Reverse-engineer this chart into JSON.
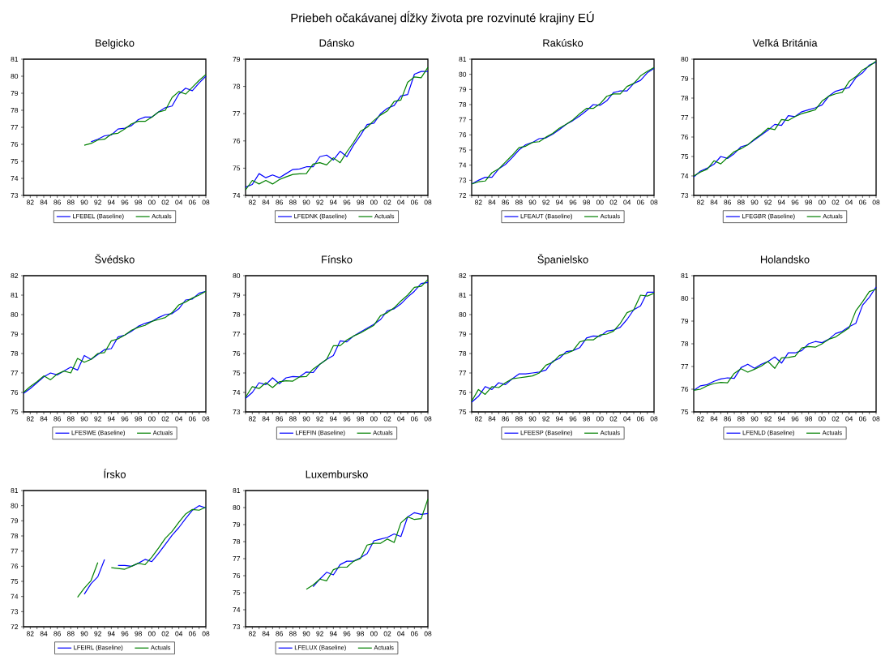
{
  "chart_data": [
    {
      "type": "line",
      "title": "Belgicko",
      "annotations": [
        "Priebeh očakávanej dĺžky života pre rozvinuté krajiny EÚ"
      ],
      "legend": "bottom",
      "xlim": [
        1981,
        2008
      ],
      "ylim": [
        73,
        81
      ],
      "yticks": [
        73,
        74,
        75,
        76,
        77,
        78,
        79,
        80,
        81
      ],
      "xticks": [
        {
          "value": 1981,
          "label": null
        },
        {
          "value": 1982,
          "label": "82"
        },
        {
          "value": 1983,
          "label": null
        },
        {
          "value": 1984,
          "label": "84"
        },
        {
          "value": 1985,
          "label": null
        },
        {
          "value": 1986,
          "label": "86"
        },
        {
          "value": 1987,
          "label": null
        },
        {
          "value": 1988,
          "label": "88"
        },
        {
          "value": 1989,
          "label": null
        },
        {
          "value": 1990,
          "label": "90"
        },
        {
          "value": 1991,
          "label": null
        },
        {
          "value": 1992,
          "label": "92"
        },
        {
          "value": 1993,
          "label": null
        },
        {
          "value": 1994,
          "label": "94"
        },
        {
          "value": 1995,
          "label": null
        },
        {
          "value": 1996,
          "label": "96"
        },
        {
          "value": 1997,
          "label": null
        },
        {
          "value": 1998,
          "label": "98"
        },
        {
          "value": 1999,
          "label": null
        },
        {
          "value": 2000,
          "label": "00"
        },
        {
          "value": 2001,
          "label": null
        },
        {
          "value": 2002,
          "label": "02"
        },
        {
          "value": 2003,
          "label": null
        },
        {
          "value": 2004,
          "label": "04"
        },
        {
          "value": 2005,
          "label": null
        },
        {
          "value": 2006,
          "label": "06"
        },
        {
          "value": 2007,
          "label": null
        },
        {
          "value": 2008,
          "label": "08"
        }
      ],
      "x": [
        1990,
        1991,
        1992,
        1993,
        1994,
        1995,
        1996,
        1997,
        1998,
        1999,
        2000,
        2001,
        2002,
        2003,
        2004,
        2005,
        2006,
        2007,
        2008
      ],
      "series": [
        {
          "name": "LFEBEL (Baseline)",
          "color": "#0000ff",
          "values": [
            null,
            76.15,
            76.3,
            76.5,
            76.55,
            76.9,
            76.95,
            77.1,
            77.45,
            77.6,
            77.6,
            77.9,
            78.15,
            78.25,
            78.95,
            79.3,
            79.15,
            79.6,
            80.0
          ]
        },
        {
          "name": "Actuals",
          "color": "#008000",
          "values": [
            75.95,
            76.05,
            76.25,
            76.3,
            76.6,
            76.65,
            76.9,
            77.2,
            77.35,
            77.35,
            77.6,
            77.9,
            78.0,
            78.75,
            79.1,
            78.95,
            79.35,
            79.75,
            80.1
          ]
        }
      ]
    },
    {
      "type": "line",
      "title": "Dánsko",
      "legend": "bottom",
      "xlim": [
        1981,
        2008
      ],
      "ylim": [
        74,
        79
      ],
      "yticks": [
        74,
        75,
        76,
        77,
        78,
        79
      ],
      "xticks": [
        {
          "value": 1981,
          "label": null
        },
        {
          "value": 1982,
          "label": "82"
        },
        {
          "value": 1983,
          "label": null
        },
        {
          "value": 1984,
          "label": "84"
        },
        {
          "value": 1985,
          "label": null
        },
        {
          "value": 1986,
          "label": "86"
        },
        {
          "value": 1987,
          "label": null
        },
        {
          "value": 1988,
          "label": "88"
        },
        {
          "value": 1989,
          "label": null
        },
        {
          "value": 1990,
          "label": "90"
        },
        {
          "value": 1991,
          "label": null
        },
        {
          "value": 1992,
          "label": "92"
        },
        {
          "value": 1993,
          "label": null
        },
        {
          "value": 1994,
          "label": "94"
        },
        {
          "value": 1995,
          "label": null
        },
        {
          "value": 1996,
          "label": "96"
        },
        {
          "value": 1997,
          "label": null
        },
        {
          "value": 1998,
          "label": "98"
        },
        {
          "value": 1999,
          "label": null
        },
        {
          "value": 2000,
          "label": "00"
        },
        {
          "value": 2001,
          "label": null
        },
        {
          "value": 2002,
          "label": "02"
        },
        {
          "value": 2003,
          "label": null
        },
        {
          "value": 2004,
          "label": "04"
        },
        {
          "value": 2005,
          "label": null
        },
        {
          "value": 2006,
          "label": "06"
        },
        {
          "value": 2007,
          "label": null
        },
        {
          "value": 2008,
          "label": "08"
        }
      ],
      "x": [
        1981,
        1982,
        1983,
        1984,
        1985,
        1986,
        1987,
        1988,
        1989,
        1990,
        1991,
        1992,
        1993,
        1994,
        1995,
        1996,
        1997,
        1998,
        1999,
        2000,
        2001,
        2002,
        2003,
        2004,
        2005,
        2006,
        2007,
        2008
      ],
      "series": [
        {
          "name": "LFEDNK (Baseline)",
          "color": "#0000ff",
          "values": [
            74.3,
            74.4,
            74.8,
            74.65,
            74.75,
            74.65,
            74.8,
            74.95,
            74.97,
            75.05,
            75.05,
            75.42,
            75.48,
            75.3,
            75.62,
            75.42,
            75.85,
            76.2,
            76.6,
            76.65,
            77.0,
            77.2,
            77.3,
            77.65,
            77.7,
            78.45,
            78.55,
            78.55
          ]
        },
        {
          "name": "Actuals",
          "color": "#008000",
          "values": [
            74.2,
            74.55,
            74.42,
            74.55,
            74.42,
            74.58,
            74.68,
            74.77,
            74.79,
            74.8,
            75.15,
            75.2,
            75.12,
            75.38,
            75.2,
            75.6,
            75.95,
            76.35,
            76.5,
            76.75,
            76.95,
            77.1,
            77.45,
            77.5,
            78.15,
            78.35,
            78.32,
            78.7
          ]
        }
      ]
    },
    {
      "type": "line",
      "title": "Rakúsko",
      "legend": "bottom",
      "xlim": [
        1981,
        2008
      ],
      "ylim": [
        72,
        81
      ],
      "yticks": [
        72,
        73,
        74,
        75,
        76,
        77,
        78,
        79,
        80,
        81
      ],
      "xticks": [
        {
          "value": 1981,
          "label": null
        },
        {
          "value": 1982,
          "label": "82"
        },
        {
          "value": 1983,
          "label": null
        },
        {
          "value": 1984,
          "label": "84"
        },
        {
          "value": 1985,
          "label": null
        },
        {
          "value": 1986,
          "label": "86"
        },
        {
          "value": 1987,
          "label": null
        },
        {
          "value": 1988,
          "label": "88"
        },
        {
          "value": 1989,
          "label": null
        },
        {
          "value": 1990,
          "label": "90"
        },
        {
          "value": 1991,
          "label": null
        },
        {
          "value": 1992,
          "label": "92"
        },
        {
          "value": 1993,
          "label": null
        },
        {
          "value": 1994,
          "label": "94"
        },
        {
          "value": 1995,
          "label": null
        },
        {
          "value": 1996,
          "label": "96"
        },
        {
          "value": 1997,
          "label": null
        },
        {
          "value": 1998,
          "label": "98"
        },
        {
          "value": 1999,
          "label": null
        },
        {
          "value": 2000,
          "label": "00"
        },
        {
          "value": 2001,
          "label": null
        },
        {
          "value": 2002,
          "label": "02"
        },
        {
          "value": 2003,
          "label": null
        },
        {
          "value": 2004,
          "label": "04"
        },
        {
          "value": 2005,
          "label": null
        },
        {
          "value": 2006,
          "label": "06"
        },
        {
          "value": 2007,
          "label": null
        },
        {
          "value": 2008,
          "label": "08"
        }
      ],
      "x": [
        1981,
        1982,
        1983,
        1984,
        1985,
        1986,
        1987,
        1988,
        1989,
        1990,
        1991,
        1992,
        1993,
        1994,
        1995,
        1996,
        1997,
        1998,
        1999,
        2000,
        2001,
        2002,
        2003,
        2004,
        2005,
        2006,
        2007,
        2008
      ],
      "series": [
        {
          "name": "LFEAUT (Baseline)",
          "color": "#0000ff",
          "values": [
            72.75,
            73.0,
            73.2,
            73.2,
            73.75,
            74.05,
            74.5,
            75.0,
            75.35,
            75.5,
            75.75,
            75.8,
            76.05,
            76.35,
            76.7,
            76.95,
            77.25,
            77.6,
            78.0,
            77.95,
            78.25,
            78.8,
            78.9,
            78.9,
            79.4,
            79.6,
            80.1,
            80.4
          ]
        },
        {
          "name": "Actuals",
          "color": "#008000",
          "values": [
            72.75,
            72.9,
            72.95,
            73.5,
            73.75,
            74.2,
            74.65,
            75.15,
            75.25,
            75.5,
            75.55,
            75.85,
            76.1,
            76.45,
            76.7,
            77.0,
            77.4,
            77.75,
            77.75,
            78.05,
            78.55,
            78.7,
            78.7,
            79.2,
            79.4,
            79.9,
            80.2,
            80.45
          ]
        }
      ]
    },
    {
      "type": "line",
      "title": "Veľká Británia",
      "legend": "bottom",
      "xlim": [
        1981,
        2008
      ],
      "ylim": [
        73,
        80
      ],
      "yticks": [
        73,
        74,
        75,
        76,
        77,
        78,
        79,
        80
      ],
      "xticks": [
        {
          "value": 1981,
          "label": null
        },
        {
          "value": 1982,
          "label": "82"
        },
        {
          "value": 1983,
          "label": null
        },
        {
          "value": 1984,
          "label": "84"
        },
        {
          "value": 1985,
          "label": null
        },
        {
          "value": 1986,
          "label": "86"
        },
        {
          "value": 1987,
          "label": null
        },
        {
          "value": 1988,
          "label": "88"
        },
        {
          "value": 1989,
          "label": null
        },
        {
          "value": 1990,
          "label": "90"
        },
        {
          "value": 1991,
          "label": null
        },
        {
          "value": 1992,
          "label": "92"
        },
        {
          "value": 1993,
          "label": null
        },
        {
          "value": 1994,
          "label": "94"
        },
        {
          "value": 1995,
          "label": null
        },
        {
          "value": 1996,
          "label": "96"
        },
        {
          "value": 1997,
          "label": null
        },
        {
          "value": 1998,
          "label": "98"
        },
        {
          "value": 1999,
          "label": null
        },
        {
          "value": 2000,
          "label": "00"
        },
        {
          "value": 2001,
          "label": null
        },
        {
          "value": 2002,
          "label": "02"
        },
        {
          "value": 2003,
          "label": null
        },
        {
          "value": 2004,
          "label": "04"
        },
        {
          "value": 2005,
          "label": null
        },
        {
          "value": 2006,
          "label": "06"
        },
        {
          "value": 2007,
          "label": null
        },
        {
          "value": 2008,
          "label": "08"
        }
      ],
      "x": [
        1981,
        1982,
        1983,
        1984,
        1985,
        1986,
        1987,
        1988,
        1989,
        1990,
        1991,
        1992,
        1993,
        1994,
        1995,
        1996,
        1997,
        1998,
        1999,
        2000,
        2001,
        2002,
        2003,
        2004,
        2005,
        2006,
        2007,
        2008
      ],
      "series": [
        {
          "name": "LFEGBR (Baseline)",
          "color": "#0000ff",
          "values": [
            73.95,
            74.25,
            74.4,
            74.6,
            75.0,
            74.9,
            75.15,
            75.5,
            75.6,
            75.85,
            76.1,
            76.35,
            76.65,
            76.6,
            77.1,
            77.05,
            77.3,
            77.4,
            77.5,
            77.65,
            78.1,
            78.35,
            78.45,
            78.55,
            79.05,
            79.3,
            79.7,
            79.85
          ]
        },
        {
          "name": "Actuals",
          "color": "#008000",
          "values": [
            74.0,
            74.2,
            74.35,
            74.78,
            74.62,
            74.95,
            75.25,
            75.4,
            75.6,
            75.9,
            76.15,
            76.45,
            76.38,
            76.9,
            76.85,
            77.05,
            77.2,
            77.3,
            77.4,
            77.85,
            78.1,
            78.22,
            78.3,
            78.85,
            79.1,
            79.45,
            79.65,
            79.9
          ]
        }
      ]
    },
    {
      "type": "line",
      "title": "Švédsko",
      "legend": "bottom",
      "xlim": [
        1981,
        2008
      ],
      "ylim": [
        75,
        82
      ],
      "yticks": [
        75,
        76,
        77,
        78,
        79,
        80,
        81,
        82
      ],
      "xticks": [
        {
          "value": 1981,
          "label": null
        },
        {
          "value": 1982,
          "label": "82"
        },
        {
          "value": 1983,
          "label": null
        },
        {
          "value": 1984,
          "label": "84"
        },
        {
          "value": 1985,
          "label": null
        },
        {
          "value": 1986,
          "label": "86"
        },
        {
          "value": 1987,
          "label": null
        },
        {
          "value": 1988,
          "label": "88"
        },
        {
          "value": 1989,
          "label": null
        },
        {
          "value": 1990,
          "label": "90"
        },
        {
          "value": 1991,
          "label": null
        },
        {
          "value": 1992,
          "label": "92"
        },
        {
          "value": 1993,
          "label": null
        },
        {
          "value": 1994,
          "label": "94"
        },
        {
          "value": 1995,
          "label": null
        },
        {
          "value": 1996,
          "label": "96"
        },
        {
          "value": 1997,
          "label": null
        },
        {
          "value": 1998,
          "label": "98"
        },
        {
          "value": 1999,
          "label": null
        },
        {
          "value": 2000,
          "label": "00"
        },
        {
          "value": 2001,
          "label": null
        },
        {
          "value": 2002,
          "label": "02"
        },
        {
          "value": 2003,
          "label": null
        },
        {
          "value": 2004,
          "label": "04"
        },
        {
          "value": 2005,
          "label": null
        },
        {
          "value": 2006,
          "label": "06"
        },
        {
          "value": 2007,
          "label": null
        },
        {
          "value": 2008,
          "label": "08"
        }
      ],
      "x": [
        1981,
        1982,
        1983,
        1984,
        1985,
        1986,
        1987,
        1988,
        1989,
        1990,
        1991,
        1992,
        1993,
        1994,
        1995,
        1996,
        1997,
        1998,
        1999,
        2000,
        2001,
        2002,
        2003,
        2004,
        2005,
        2006,
        2007,
        2008
      ],
      "series": [
        {
          "name": "LFESWE (Baseline)",
          "color": "#0000ff",
          "values": [
            75.95,
            76.2,
            76.5,
            76.8,
            77.0,
            76.9,
            77.1,
            77.3,
            77.15,
            77.9,
            77.7,
            77.95,
            78.2,
            78.25,
            78.85,
            78.95,
            79.15,
            79.4,
            79.55,
            79.65,
            79.85,
            80.0,
            80.05,
            80.3,
            80.75,
            80.8,
            81.1,
            81.2
          ]
        },
        {
          "name": "Actuals",
          "color": "#008000",
          "values": [
            76.0,
            76.3,
            76.55,
            76.85,
            76.65,
            76.95,
            77.1,
            77.0,
            77.75,
            77.55,
            77.7,
            78.0,
            78.05,
            78.65,
            78.75,
            78.95,
            79.2,
            79.35,
            79.45,
            79.65,
            79.75,
            79.85,
            80.1,
            80.5,
            80.65,
            80.85,
            81.0,
            81.2
          ]
        }
      ]
    },
    {
      "type": "line",
      "title": "Fínsko",
      "legend": "bottom",
      "xlim": [
        1981,
        2008
      ],
      "ylim": [
        73,
        80
      ],
      "yticks": [
        73,
        74,
        75,
        76,
        77,
        78,
        79,
        80
      ],
      "xticks": [
        {
          "value": 1981,
          "label": null
        },
        {
          "value": 1982,
          "label": "82"
        },
        {
          "value": 1983,
          "label": null
        },
        {
          "value": 1984,
          "label": "84"
        },
        {
          "value": 1985,
          "label": null
        },
        {
          "value": 1986,
          "label": "86"
        },
        {
          "value": 1987,
          "label": null
        },
        {
          "value": 1988,
          "label": "88"
        },
        {
          "value": 1989,
          "label": null
        },
        {
          "value": 1990,
          "label": "90"
        },
        {
          "value": 1991,
          "label": null
        },
        {
          "value": 1992,
          "label": "92"
        },
        {
          "value": 1993,
          "label": null
        },
        {
          "value": 1994,
          "label": "94"
        },
        {
          "value": 1995,
          "label": null
        },
        {
          "value": 1996,
          "label": "96"
        },
        {
          "value": 1997,
          "label": null
        },
        {
          "value": 1998,
          "label": "98"
        },
        {
          "value": 1999,
          "label": null
        },
        {
          "value": 2000,
          "label": "00"
        },
        {
          "value": 2001,
          "label": null
        },
        {
          "value": 2002,
          "label": "02"
        },
        {
          "value": 2003,
          "label": null
        },
        {
          "value": 2004,
          "label": "04"
        },
        {
          "value": 2005,
          "label": null
        },
        {
          "value": 2006,
          "label": "06"
        },
        {
          "value": 2007,
          "label": null
        },
        {
          "value": 2008,
          "label": "08"
        }
      ],
      "x": [
        1981,
        1982,
        1983,
        1984,
        1985,
        1986,
        1987,
        1988,
        1989,
        1990,
        1991,
        1992,
        1993,
        1994,
        1995,
        1996,
        1997,
        1998,
        1999,
        2000,
        2001,
        2002,
        2003,
        2004,
        2005,
        2006,
        2007,
        2008
      ],
      "series": [
        {
          "name": "LFEFIN (Baseline)",
          "color": "#0000ff",
          "values": [
            73.7,
            74.0,
            74.5,
            74.4,
            74.75,
            74.45,
            74.75,
            74.82,
            74.8,
            75.05,
            75.02,
            75.45,
            75.7,
            75.9,
            76.65,
            76.6,
            76.9,
            77.1,
            77.3,
            77.5,
            77.75,
            78.2,
            78.3,
            78.55,
            78.9,
            79.2,
            79.6,
            79.65
          ]
        },
        {
          "name": "Actuals",
          "color": "#008000",
          "values": [
            73.75,
            74.3,
            74.2,
            74.5,
            74.25,
            74.55,
            74.6,
            74.58,
            74.8,
            74.82,
            75.2,
            75.45,
            75.7,
            76.4,
            76.4,
            76.7,
            76.9,
            77.05,
            77.25,
            77.45,
            77.95,
            78.1,
            78.35,
            78.7,
            79.0,
            79.4,
            79.45,
            79.8
          ]
        }
      ]
    },
    {
      "type": "line",
      "title": "Španielsko",
      "legend": "bottom",
      "xlim": [
        1981,
        2008
      ],
      "ylim": [
        75,
        82
      ],
      "yticks": [
        75,
        76,
        77,
        78,
        79,
        80,
        81,
        82
      ],
      "xticks": [
        {
          "value": 1981,
          "label": null
        },
        {
          "value": 1982,
          "label": "82"
        },
        {
          "value": 1983,
          "label": null
        },
        {
          "value": 1984,
          "label": "84"
        },
        {
          "value": 1985,
          "label": null
        },
        {
          "value": 1986,
          "label": "86"
        },
        {
          "value": 1987,
          "label": null
        },
        {
          "value": 1988,
          "label": "88"
        },
        {
          "value": 1989,
          "label": null
        },
        {
          "value": 1990,
          "label": "90"
        },
        {
          "value": 1991,
          "label": null
        },
        {
          "value": 1992,
          "label": "92"
        },
        {
          "value": 1993,
          "label": null
        },
        {
          "value": 1994,
          "label": "94"
        },
        {
          "value": 1995,
          "label": null
        },
        {
          "value": 1996,
          "label": "96"
        },
        {
          "value": 1997,
          "label": null
        },
        {
          "value": 1998,
          "label": "98"
        },
        {
          "value": 1999,
          "label": null
        },
        {
          "value": 2000,
          "label": "00"
        },
        {
          "value": 2001,
          "label": null
        },
        {
          "value": 2002,
          "label": "02"
        },
        {
          "value": 2003,
          "label": null
        },
        {
          "value": 2004,
          "label": "04"
        },
        {
          "value": 2005,
          "label": null
        },
        {
          "value": 2006,
          "label": "06"
        },
        {
          "value": 2007,
          "label": null
        },
        {
          "value": 2008,
          "label": "08"
        }
      ],
      "x": [
        1981,
        1982,
        1983,
        1984,
        1985,
        1986,
        1987,
        1988,
        1989,
        1990,
        1991,
        1992,
        1993,
        1994,
        1995,
        1996,
        1997,
        1998,
        1999,
        2000,
        2001,
        2002,
        2003,
        2004,
        2005,
        2006,
        2007,
        2008
      ],
      "series": [
        {
          "name": "LFEESP (Baseline)",
          "color": "#0000ff",
          "values": [
            75.5,
            75.8,
            76.3,
            76.15,
            76.5,
            76.4,
            76.7,
            76.95,
            76.95,
            77.0,
            77.05,
            77.15,
            77.6,
            77.75,
            78.1,
            78.15,
            78.3,
            78.8,
            78.9,
            78.88,
            79.15,
            79.2,
            79.35,
            79.75,
            80.25,
            80.45,
            81.15,
            81.15
          ]
        },
        {
          "name": "Actuals",
          "color": "#008000",
          "values": [
            75.55,
            76.15,
            75.9,
            76.3,
            76.25,
            76.5,
            76.7,
            76.75,
            76.8,
            76.85,
            77.0,
            77.4,
            77.55,
            77.9,
            78.0,
            78.15,
            78.6,
            78.7,
            78.7,
            78.95,
            79.0,
            79.15,
            79.55,
            80.1,
            80.25,
            81.0,
            80.95,
            81.1
          ]
        }
      ]
    },
    {
      "type": "line",
      "title": "Holandsko",
      "legend": "bottom",
      "xlim": [
        1981,
        2008
      ],
      "ylim": [
        75,
        81
      ],
      "yticks": [
        75,
        76,
        77,
        78,
        79,
        80,
        81
      ],
      "xticks": [
        {
          "value": 1981,
          "label": null
        },
        {
          "value": 1982,
          "label": "82"
        },
        {
          "value": 1983,
          "label": null
        },
        {
          "value": 1984,
          "label": "84"
        },
        {
          "value": 1985,
          "label": null
        },
        {
          "value": 1986,
          "label": "86"
        },
        {
          "value": 1987,
          "label": null
        },
        {
          "value": 1988,
          "label": "88"
        },
        {
          "value": 1989,
          "label": null
        },
        {
          "value": 1990,
          "label": "90"
        },
        {
          "value": 1991,
          "label": null
        },
        {
          "value": 1992,
          "label": "92"
        },
        {
          "value": 1993,
          "label": null
        },
        {
          "value": 1994,
          "label": "94"
        },
        {
          "value": 1995,
          "label": null
        },
        {
          "value": 1996,
          "label": "96"
        },
        {
          "value": 1997,
          "label": null
        },
        {
          "value": 1998,
          "label": "98"
        },
        {
          "value": 1999,
          "label": null
        },
        {
          "value": 2000,
          "label": "00"
        },
        {
          "value": 2001,
          "label": null
        },
        {
          "value": 2002,
          "label": "02"
        },
        {
          "value": 2003,
          "label": null
        },
        {
          "value": 2004,
          "label": "04"
        },
        {
          "value": 2005,
          "label": null
        },
        {
          "value": 2006,
          "label": "06"
        },
        {
          "value": 2007,
          "label": null
        },
        {
          "value": 2008,
          "label": "08"
        }
      ],
      "x": [
        1981,
        1982,
        1983,
        1984,
        1985,
        1986,
        1987,
        1988,
        1989,
        1990,
        1991,
        1992,
        1993,
        1994,
        1995,
        1996,
        1997,
        1998,
        1999,
        2000,
        2001,
        2002,
        2003,
        2004,
        2005,
        2006,
        2007,
        2008
      ],
      "series": [
        {
          "name": "LFENLD (Baseline)",
          "color": "#0000ff",
          "values": [
            75.95,
            76.15,
            76.2,
            76.35,
            76.45,
            76.5,
            76.48,
            76.95,
            77.1,
            76.92,
            77.1,
            77.22,
            77.42,
            77.15,
            77.6,
            77.6,
            77.7,
            78.0,
            78.1,
            78.05,
            78.2,
            78.45,
            78.55,
            78.75,
            78.9,
            79.7,
            80.05,
            80.5
          ]
        },
        {
          "name": "Actuals",
          "color": "#008000",
          "values": [
            75.95,
            76.0,
            76.15,
            76.25,
            76.3,
            76.28,
            76.7,
            76.9,
            76.75,
            76.88,
            77.02,
            77.22,
            76.92,
            77.38,
            77.4,
            77.45,
            77.82,
            77.88,
            77.85,
            78.0,
            78.2,
            78.3,
            78.5,
            78.7,
            79.45,
            79.85,
            80.3,
            80.4
          ]
        }
      ]
    },
    {
      "type": "line",
      "title": "Írsko",
      "legend": "bottom",
      "xlim": [
        1981,
        2008
      ],
      "ylim": [
        72,
        81
      ],
      "yticks": [
        72,
        73,
        74,
        75,
        76,
        77,
        78,
        79,
        80,
        81
      ],
      "xticks": [
        {
          "value": 1981,
          "label": null
        },
        {
          "value": 1982,
          "label": "82"
        },
        {
          "value": 1983,
          "label": null
        },
        {
          "value": 1984,
          "label": "84"
        },
        {
          "value": 1985,
          "label": null
        },
        {
          "value": 1986,
          "label": "86"
        },
        {
          "value": 1987,
          "label": null
        },
        {
          "value": 1988,
          "label": "88"
        },
        {
          "value": 1989,
          "label": null
        },
        {
          "value": 1990,
          "label": "90"
        },
        {
          "value": 1991,
          "label": null
        },
        {
          "value": 1992,
          "label": "92"
        },
        {
          "value": 1993,
          "label": null
        },
        {
          "value": 1994,
          "label": "94"
        },
        {
          "value": 1995,
          "label": null
        },
        {
          "value": 1996,
          "label": "96"
        },
        {
          "value": 1997,
          "label": null
        },
        {
          "value": 1998,
          "label": "98"
        },
        {
          "value": 1999,
          "label": null
        },
        {
          "value": 2000,
          "label": "00"
        },
        {
          "value": 2001,
          "label": null
        },
        {
          "value": 2002,
          "label": "02"
        },
        {
          "value": 2003,
          "label": null
        },
        {
          "value": 2004,
          "label": "04"
        },
        {
          "value": 2005,
          "label": null
        },
        {
          "value": 2006,
          "label": "06"
        },
        {
          "value": 2007,
          "label": null
        },
        {
          "value": 2008,
          "label": "08"
        }
      ],
      "x": [
        1989,
        1990,
        1991,
        1992,
        1993,
        1994,
        1995,
        1996,
        1997,
        1998,
        1999,
        2000,
        2001,
        2002,
        2003,
        2004,
        2005,
        2006,
        2007,
        2008
      ],
      "series": [
        {
          "name": "LFEIRL (Baseline)",
          "color": "#0000ff",
          "values": [
            null,
            74.15,
            74.85,
            75.3,
            76.45,
            null,
            76.05,
            76.05,
            76.0,
            76.2,
            76.45,
            76.3,
            76.85,
            77.45,
            78.05,
            78.55,
            79.15,
            79.7,
            80.0,
            79.85
          ]
        },
        {
          "name": "Actuals",
          "color": "#008000",
          "values": [
            73.95,
            74.55,
            75.05,
            76.25,
            null,
            75.9,
            75.85,
            75.8,
            76.0,
            76.2,
            76.1,
            76.6,
            77.2,
            77.85,
            78.3,
            78.9,
            79.45,
            79.75,
            79.7,
            79.9
          ]
        }
      ]
    },
    {
      "type": "line",
      "title": "Luxembursko",
      "legend": "bottom",
      "xlim": [
        1981,
        2008
      ],
      "ylim": [
        73,
        81
      ],
      "yticks": [
        73,
        74,
        75,
        76,
        77,
        78,
        79,
        80,
        81
      ],
      "xticks": [
        {
          "value": 1981,
          "label": null
        },
        {
          "value": 1982,
          "label": "82"
        },
        {
          "value": 1983,
          "label": null
        },
        {
          "value": 1984,
          "label": "84"
        },
        {
          "value": 1985,
          "label": null
        },
        {
          "value": 1986,
          "label": "86"
        },
        {
          "value": 1987,
          "label": null
        },
        {
          "value": 1988,
          "label": "88"
        },
        {
          "value": 1989,
          "label": null
        },
        {
          "value": 1990,
          "label": "90"
        },
        {
          "value": 1991,
          "label": null
        },
        {
          "value": 1992,
          "label": "92"
        },
        {
          "value": 1993,
          "label": null
        },
        {
          "value": 1994,
          "label": "94"
        },
        {
          "value": 1995,
          "label": null
        },
        {
          "value": 1996,
          "label": "96"
        },
        {
          "value": 1997,
          "label": null
        },
        {
          "value": 1998,
          "label": "98"
        },
        {
          "value": 1999,
          "label": null
        },
        {
          "value": 2000,
          "label": "00"
        },
        {
          "value": 2001,
          "label": null
        },
        {
          "value": 2002,
          "label": "02"
        },
        {
          "value": 2003,
          "label": null
        },
        {
          "value": 2004,
          "label": "04"
        },
        {
          "value": 2005,
          "label": null
        },
        {
          "value": 2006,
          "label": "06"
        },
        {
          "value": 2007,
          "label": null
        },
        {
          "value": 2008,
          "label": "08"
        }
      ],
      "x": [
        1990,
        1991,
        1992,
        1993,
        1994,
        1995,
        1996,
        1997,
        1998,
        1999,
        2000,
        2001,
        2002,
        2003,
        2004,
        2005,
        2006,
        2007,
        2008
      ],
      "series": [
        {
          "name": "LFELUX (Baseline)",
          "color": "#0000ff",
          "values": [
            null,
            75.35,
            75.8,
            76.2,
            76.05,
            76.65,
            76.85,
            76.85,
            77.05,
            77.3,
            78.05,
            78.15,
            78.25,
            78.45,
            78.3,
            79.45,
            79.7,
            79.6,
            79.65
          ]
        },
        {
          "name": "Actuals",
          "color": "#008000",
          "values": [
            75.2,
            75.45,
            75.8,
            75.7,
            76.35,
            76.5,
            76.5,
            76.85,
            77.0,
            77.8,
            77.9,
            77.9,
            78.15,
            77.95,
            79.1,
            79.45,
            79.3,
            79.35,
            80.5
          ]
        }
      ]
    }
  ]
}
